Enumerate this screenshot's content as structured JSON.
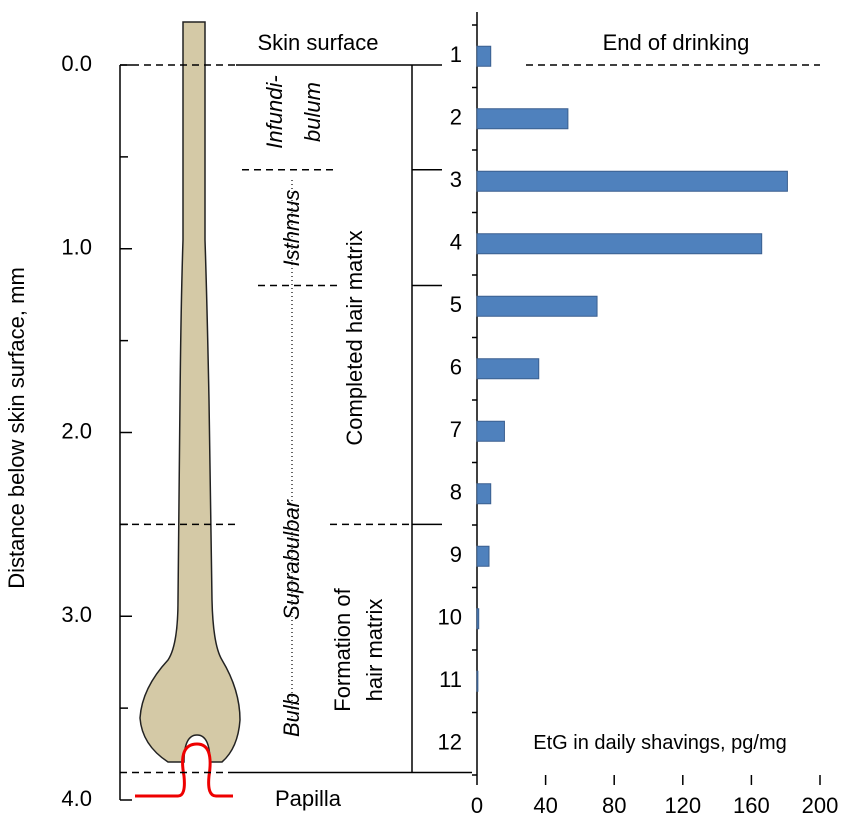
{
  "diagram": {
    "ylabel": "Distance below skin surface, mm",
    "ylim": [
      0,
      4
    ],
    "yticks": [
      {
        "value": 0,
        "label": "0.0"
      },
      {
        "value": 1,
        "label": "1.0"
      },
      {
        "value": 2,
        "label": "2.0"
      },
      {
        "value": 3,
        "label": "3.0"
      },
      {
        "value": 4,
        "label": "4.0"
      }
    ],
    "minor_yticks": [
      0.5,
      1.5,
      2.5,
      3.5
    ],
    "labels": {
      "skin_surface": "Skin surface",
      "infundibulum": [
        "Infundi-",
        "bulum"
      ],
      "isthmus": "Isthmus",
      "suprabulbar": "Suprabulbar",
      "bulb": "Bulb",
      "completed": "Completed hair matrix",
      "formation": [
        "Formation of",
        "hair matrix"
      ],
      "papilla": "Papilla"
    },
    "zone_boundaries": [
      0.57,
      1.2,
      2.5
    ],
    "matrix_bottom": 3.85
  },
  "chart_data": {
    "type": "hbar",
    "annotation": "End of drinking",
    "xlabel": "EtG in daily shavings, pg/mg",
    "categories": [
      "1",
      "2",
      "3",
      "4",
      "5",
      "6",
      "7",
      "8",
      "9",
      "10",
      "11",
      "12"
    ],
    "values": [
      8,
      53,
      181,
      166,
      70,
      36,
      16,
      8,
      7,
      1,
      0.5,
      0
    ],
    "color": "#4f81bd",
    "xlim": [
      0,
      200
    ],
    "xticks": [
      0,
      40,
      80,
      120,
      160,
      200
    ]
  }
}
